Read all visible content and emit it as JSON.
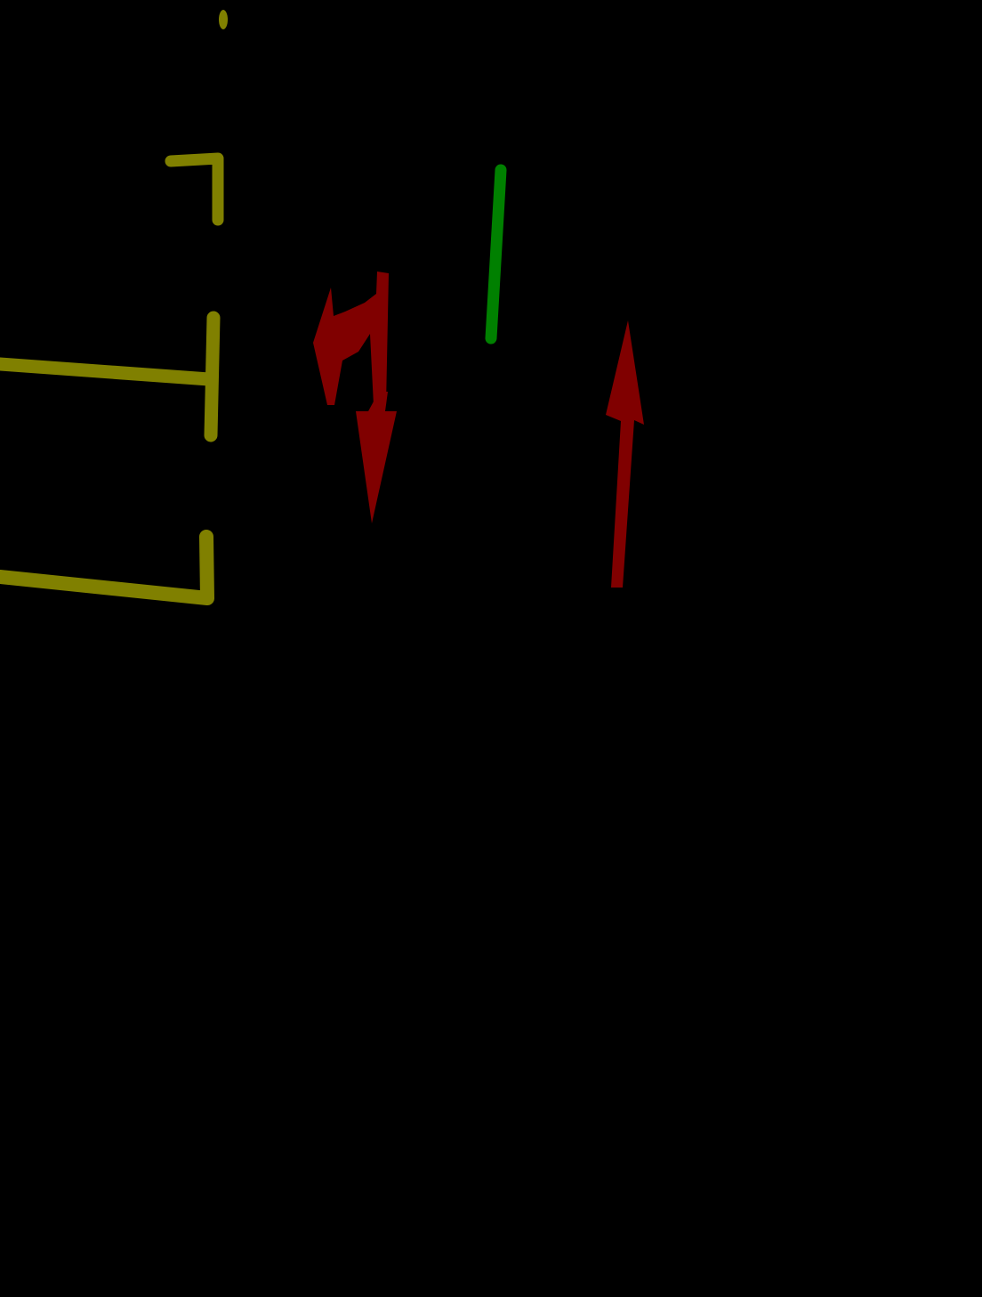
{
  "scene": {
    "background": "#000000",
    "colors": {
      "lane_line": "#808000",
      "divider_line": "#008000",
      "arrow": "#800000"
    },
    "elements": [
      {
        "name": "lane-boundary-top-dot",
        "kind": "lane_line"
      },
      {
        "name": "lane-boundary-upper",
        "kind": "lane_line"
      },
      {
        "name": "lane-boundary-middle",
        "kind": "lane_line"
      },
      {
        "name": "lane-boundary-lower",
        "kind": "lane_line"
      },
      {
        "name": "green-divider-line",
        "kind": "divider_line"
      },
      {
        "name": "left-turn-arrow-icon",
        "kind": "arrow"
      },
      {
        "name": "straight-down-arrow-icon",
        "kind": "arrow"
      },
      {
        "name": "straight-up-arrow-icon",
        "kind": "arrow"
      }
    ]
  }
}
